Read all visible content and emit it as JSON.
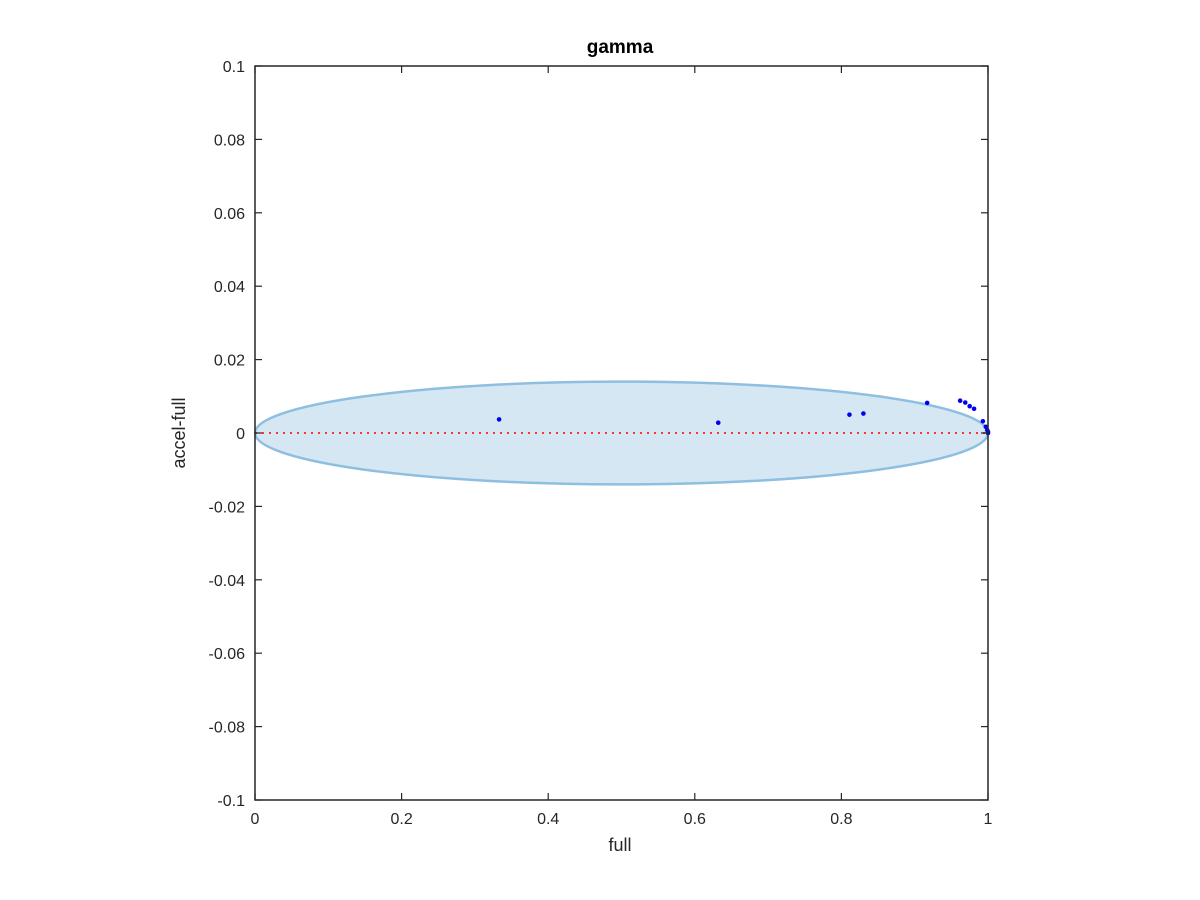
{
  "chart_data": {
    "type": "scatter",
    "title": "gamma",
    "xlabel": "full",
    "ylabel": "accel-full",
    "xlim": [
      0,
      1
    ],
    "ylim": [
      -0.1,
      0.1
    ],
    "xticks": [
      0,
      0.2,
      0.4,
      0.6,
      0.8,
      1
    ],
    "xtick_labels": [
      "0",
      "0.2",
      "0.4",
      "0.6",
      "0.8",
      "1"
    ],
    "yticks": [
      0.1,
      0.08,
      0.06,
      0.04,
      0.02,
      0,
      -0.02,
      -0.04,
      -0.06,
      -0.08,
      -0.1
    ],
    "ytick_labels": [
      "0.1",
      "0.08",
      "0.06",
      "0.04",
      "0.02",
      "0",
      "-0.02",
      "-0.04",
      "-0.06",
      "-0.08",
      "-0.1"
    ],
    "grid": false,
    "box": true,
    "colors": {
      "points": "#0000ee",
      "reference_line": "#ff3333",
      "ellipse_fill": "#d6e7f4",
      "ellipse_edge": "#8fbfe0",
      "axes": "#262626"
    },
    "ellipse": {
      "center": [
        0.5,
        0
      ],
      "x_radius": 0.5,
      "y_radius": 0.014
    },
    "reference_line": {
      "y": 0,
      "style": "dotted"
    },
    "points": [
      {
        "x": 0.333,
        "y": 0.0037
      },
      {
        "x": 0.632,
        "y": 0.0028
      },
      {
        "x": 0.811,
        "y": 0.005
      },
      {
        "x": 0.83,
        "y": 0.0053
      },
      {
        "x": 0.917,
        "y": 0.0082
      },
      {
        "x": 0.962,
        "y": 0.0088
      },
      {
        "x": 0.969,
        "y": 0.0083
      },
      {
        "x": 0.975,
        "y": 0.0073
      },
      {
        "x": 0.981,
        "y": 0.0066
      },
      {
        "x": 0.993,
        "y": 0.0032
      },
      {
        "x": 0.997,
        "y": 0.0017
      },
      {
        "x": 0.999,
        "y": 0.0008
      },
      {
        "x": 1.0,
        "y": 0.0003
      },
      {
        "x": 1.0,
        "y": 0.0
      }
    ]
  }
}
